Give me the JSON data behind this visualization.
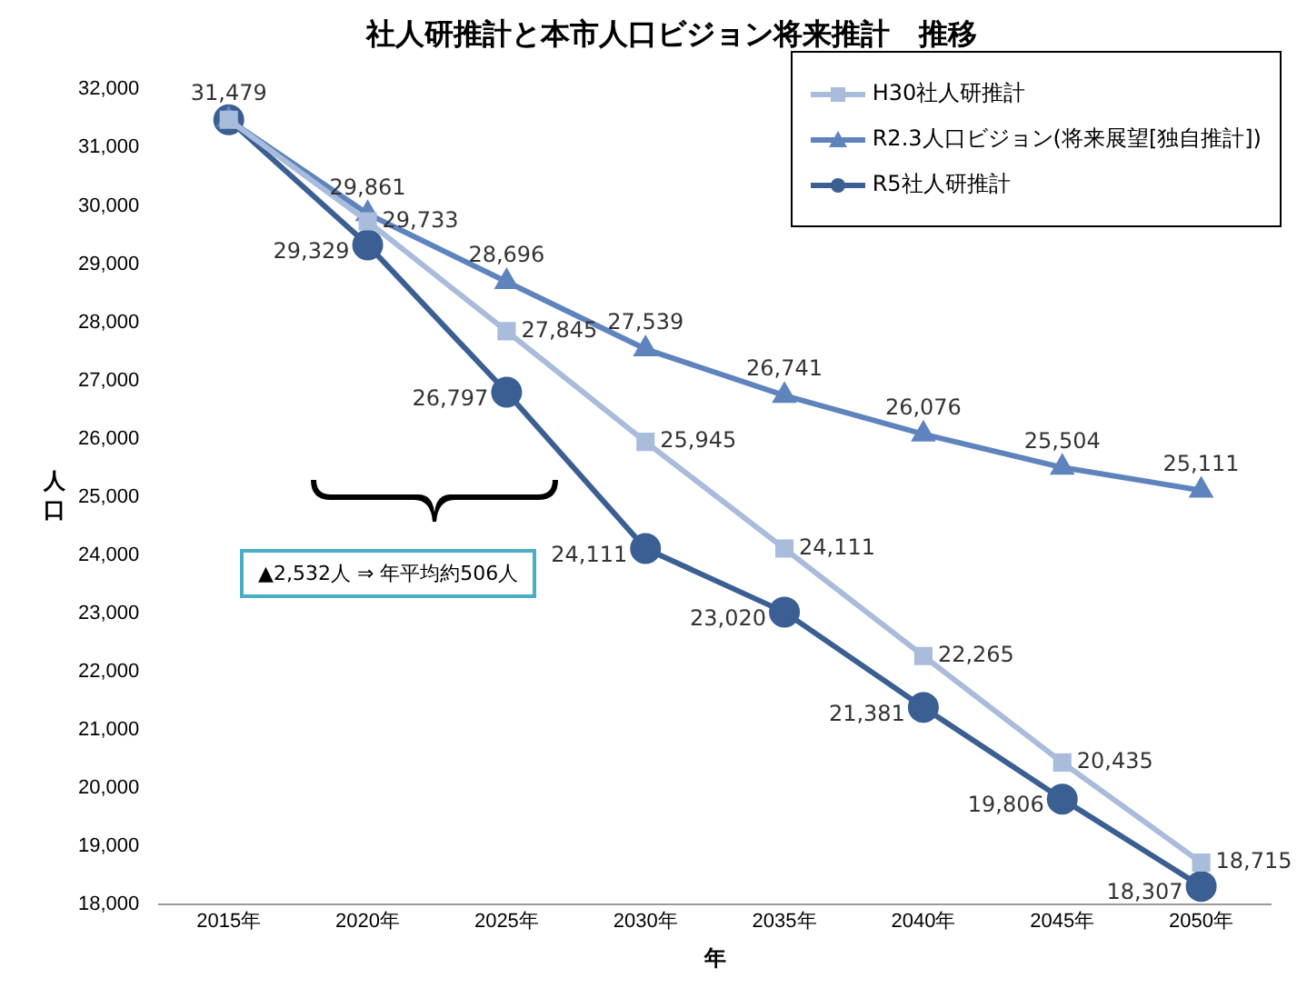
{
  "chart_data": {
    "type": "line",
    "title": "社人研推計と本市人口ビジョン将来推計　推移",
    "xlabel": "年",
    "ylabel": "人口",
    "categories": [
      "2015年",
      "2020年",
      "2025年",
      "2030年",
      "2035年",
      "2040年",
      "2045年",
      "2050年"
    ],
    "series": [
      {
        "name": "H30社人研推計",
        "color": "#a9bcdb",
        "marker": "square",
        "values": [
          31479,
          29733,
          27845,
          25945,
          24111,
          22265,
          20435,
          18715
        ],
        "value_labels": [
          null,
          "29,733",
          "27,845",
          "25,945",
          "24,111",
          "22,265",
          "20,435",
          "18,715"
        ]
      },
      {
        "name": "R2.3人口ビジョン(将来展望[独自推計])",
        "color": "#5f84bd",
        "marker": "triangle",
        "values": [
          31479,
          29861,
          28696,
          27539,
          26741,
          26076,
          25504,
          25111
        ],
        "value_labels": [
          "31,479",
          "29,861",
          "28,696",
          "27,539",
          "26,741",
          "26,076",
          "25,504",
          "25,111"
        ]
      },
      {
        "name": "R5社人研推計",
        "color": "#3b5f93",
        "marker": "circle",
        "values": [
          31479,
          29329,
          26797,
          24111,
          23020,
          21381,
          19806,
          18307
        ],
        "value_labels": [
          null,
          "29,329",
          "26,797",
          "24,111",
          "23,020",
          "21,381",
          "19,806",
          "18,307"
        ]
      }
    ],
    "ylim": [
      18000,
      32000
    ],
    "yticks": [
      {
        "value": 18000,
        "label": "18,000"
      },
      {
        "value": 19000,
        "label": "19,000"
      },
      {
        "value": 20000,
        "label": "20,000"
      },
      {
        "value": 21000,
        "label": "21,000"
      },
      {
        "value": 22000,
        "label": "22,000"
      },
      {
        "value": 23000,
        "label": "23,000"
      },
      {
        "value": 24000,
        "label": "24,000"
      },
      {
        "value": 25000,
        "label": "25,000"
      },
      {
        "value": 26000,
        "label": "26,000"
      },
      {
        "value": 27000,
        "label": "27,000"
      },
      {
        "value": 28000,
        "label": "28,000"
      },
      {
        "value": 29000,
        "label": "29,000"
      },
      {
        "value": 30000,
        "label": "30,000"
      },
      {
        "value": 31000,
        "label": "31,000"
      },
      {
        "value": 32000,
        "label": "32,000"
      }
    ],
    "grid": false,
    "legend": "top right",
    "line_style": "solid",
    "annotations": [
      "▲2,532人 ⇒ 年平均約506人"
    ]
  }
}
